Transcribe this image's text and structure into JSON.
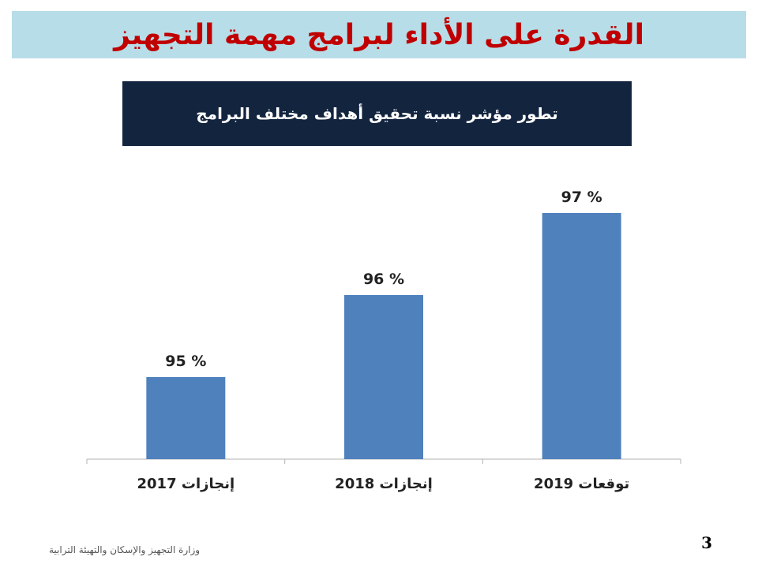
{
  "header": {
    "title": "القدرة على الأداء لبرامج مهمة التجهيز"
  },
  "chart_data": {
    "type": "bar",
    "title": "تطور مؤشر نسبة تحقيق أهداف مختلف البرامج",
    "categories": [
      "إنجازات 2017",
      "إنجازات 2018",
      "توقعات 2019"
    ],
    "values": [
      95,
      96,
      97
    ],
    "data_labels": [
      "95 %",
      "96 %",
      "97 %"
    ],
    "bar_color": "#4f81bd",
    "xlabel": "",
    "ylabel": "",
    "grid": false
  },
  "footer": {
    "page_number": "3",
    "ministry": "وزارة التجهيز والإسكان والتهيئة الترابية"
  }
}
